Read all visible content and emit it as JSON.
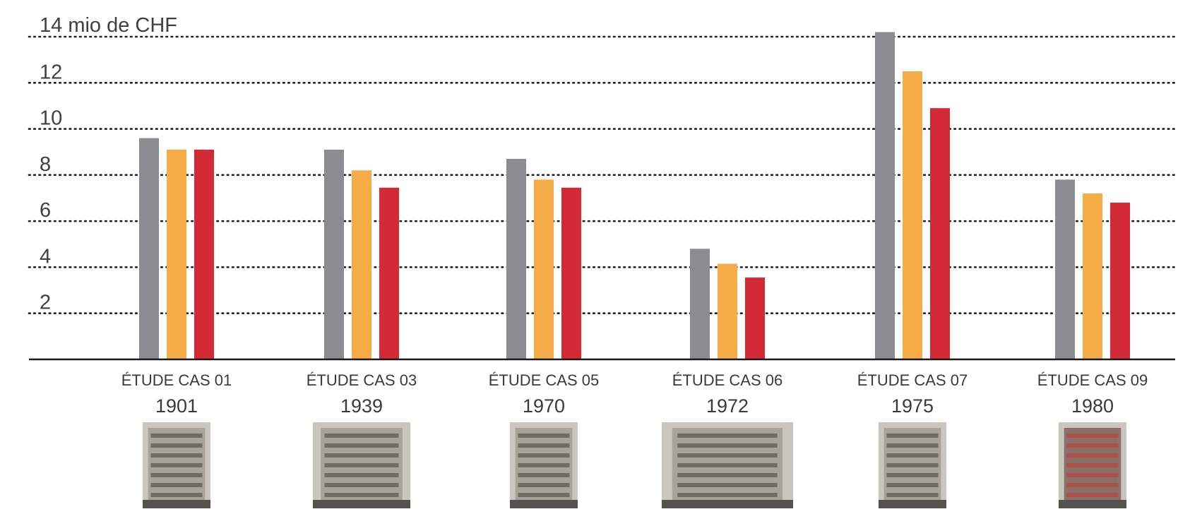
{
  "chart_data": {
    "type": "bar",
    "title": "",
    "ylabel": "14 mio de CHF",
    "xlabel": "",
    "ylim": [
      0,
      14
    ],
    "yticks": [
      2,
      4,
      6,
      8,
      10,
      12
    ],
    "grid": "dotted horizontal",
    "categories": [
      {
        "label": "ÉTUDE CAS 01",
        "year": "1901"
      },
      {
        "label": "ÉTUDE CAS 03",
        "year": "1939"
      },
      {
        "label": "ÉTUDE CAS 05",
        "year": "1970"
      },
      {
        "label": "ÉTUDE CAS 06",
        "year": "1972"
      },
      {
        "label": "ÉTUDE CAS 07",
        "year": "1975"
      },
      {
        "label": "ÉTUDE CAS 09",
        "year": "1980"
      }
    ],
    "series": [
      {
        "name": "series-grey",
        "color": "#8a8c8f",
        "values": [
          9.6,
          9.1,
          8.7,
          4.8,
          14.2,
          7.8
        ]
      },
      {
        "name": "series-orange",
        "color": "#f7ad47",
        "values": [
          9.1,
          8.2,
          7.8,
          4.15,
          12.5,
          7.2
        ]
      },
      {
        "name": "series-red",
        "color": "#d42a35",
        "values": [
          9.1,
          7.45,
          7.45,
          3.55,
          10.9,
          6.8
        ]
      }
    ]
  }
}
